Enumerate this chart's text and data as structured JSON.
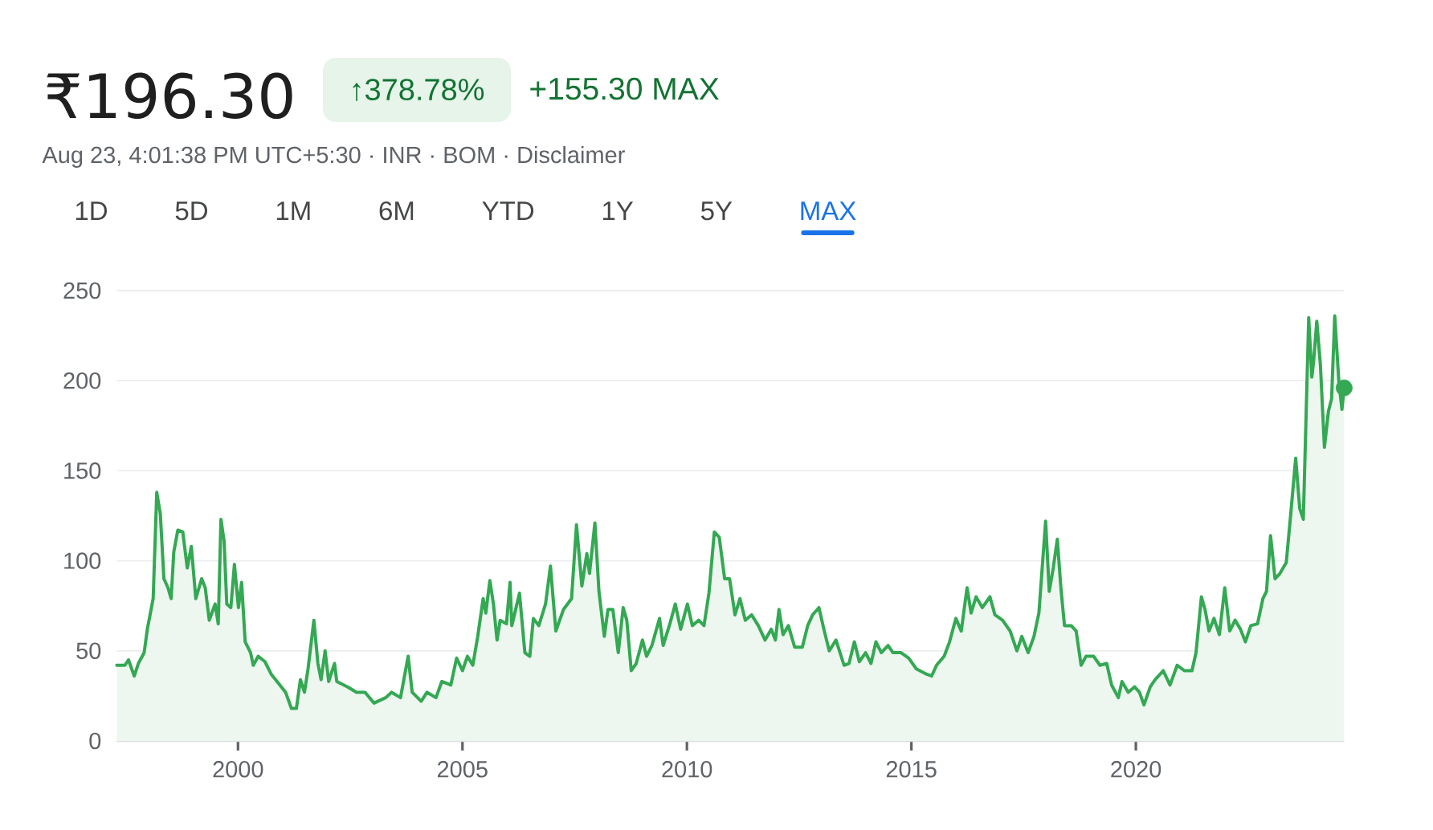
{
  "chart_data": {
    "type": "area",
    "title": "₹196.30",
    "subtitle": "Aug 23, 4:01:38 PM UTC+5:30 · INR · BOM · Disclaimer",
    "annotations": [
      "↑378.78%",
      "+155.30 MAX",
      "1D",
      "5D",
      "1M",
      "6M",
      "YTD",
      "1Y",
      "5Y",
      "MAX"
    ],
    "series": [
      {
        "color": "#34a853",
        "x": [
          1997.3,
          1997.48,
          1997.56,
          1997.69,
          1997.78,
          1997.91,
          1997.98,
          1998.11,
          1998.19,
          1998.27,
          1998.35,
          1998.44,
          1998.51,
          1998.57,
          1998.66,
          1998.77,
          1998.87,
          1998.96,
          1999.06,
          1999.19,
          1999.27,
          1999.36,
          1999.49,
          1999.56,
          1999.62,
          1999.69,
          1999.75,
          1999.84,
          1999.92,
          2000.01,
          2000.08,
          2000.16,
          2000.28,
          2000.34,
          2000.45,
          2000.6,
          2000.74,
          2000.87,
          2001.06,
          2001.19,
          2001.3,
          2001.39,
          2001.48,
          2001.56,
          2001.69,
          2001.78,
          2001.85,
          2001.94,
          2002.02,
          2002.15,
          2002.2,
          2002.44,
          2002.64,
          2002.83,
          2003.03,
          2003.29,
          2003.42,
          2003.62,
          2003.79,
          2003.88,
          2004.08,
          2004.21,
          2004.41,
          2004.54,
          2004.74,
          2004.87,
          2005.0,
          2005.11,
          2005.23,
          2005.34,
          2005.46,
          2005.52,
          2005.61,
          2005.69,
          2005.77,
          2005.84,
          2005.98,
          2006.06,
          2006.1,
          2006.27,
          2006.39,
          2006.5,
          2006.58,
          2006.7,
          2006.85,
          2006.96,
          2007.08,
          2007.25,
          2007.43,
          2007.54,
          2007.66,
          2007.77,
          2007.83,
          2007.95,
          2008.04,
          2008.16,
          2008.24,
          2008.35,
          2008.47,
          2008.58,
          2008.66,
          2008.76,
          2008.87,
          2009.01,
          2009.1,
          2009.22,
          2009.39,
          2009.47,
          2009.62,
          2009.74,
          2009.86,
          2010.01,
          2010.12,
          2010.26,
          2010.38,
          2010.49,
          2010.61,
          2010.72,
          2010.84,
          2010.95,
          2011.07,
          2011.18,
          2011.3,
          2011.44,
          2011.59,
          2011.74,
          2011.88,
          2011.97,
          2012.05,
          2012.14,
          2012.26,
          2012.4,
          2012.57,
          2012.69,
          2012.8,
          2012.94,
          2013.06,
          2013.17,
          2013.32,
          2013.5,
          2013.61,
          2013.73,
          2013.84,
          2013.98,
          2014.1,
          2014.21,
          2014.33,
          2014.48,
          2014.59,
          2014.77,
          2014.94,
          2015.11,
          2015.34,
          2015.45,
          2015.56,
          2015.73,
          2015.85,
          2015.99,
          2016.11,
          2016.24,
          2016.33,
          2016.44,
          2016.58,
          2016.75,
          2016.86,
          2017.03,
          2017.2,
          2017.35,
          2017.46,
          2017.6,
          2017.73,
          2017.84,
          2017.99,
          2018.07,
          2018.16,
          2018.25,
          2018.33,
          2018.41,
          2018.56,
          2018.67,
          2018.78,
          2018.89,
          2019.06,
          2019.2,
          2019.35,
          2019.46,
          2019.61,
          2019.69,
          2019.83,
          2019.97,
          2020.08,
          2020.18,
          2020.32,
          2020.43,
          2020.61,
          2020.76,
          2020.92,
          2021.08,
          2021.25,
          2021.34,
          2021.46,
          2021.54,
          2021.63,
          2021.74,
          2021.86,
          2021.98,
          2022.09,
          2022.21,
          2022.33,
          2022.44,
          2022.56,
          2022.71,
          2022.83,
          2022.91,
          2023.0,
          2023.1,
          2023.21,
          2023.35,
          2023.45,
          2023.56,
          2023.65,
          2023.73,
          2023.85,
          2023.92,
          2023.96,
          2024.03,
          2024.11,
          2024.2,
          2024.29,
          2024.36,
          2024.43,
          2024.52,
          2024.59,
          2024.64
        ],
        "values": [
          42,
          42,
          45,
          36,
          43,
          49,
          62,
          79,
          138,
          126,
          90,
          85,
          79,
          105,
          117,
          116,
          96,
          108,
          79,
          90,
          85,
          67,
          76,
          65,
          123,
          111,
          76,
          74,
          98,
          74,
          88,
          55,
          49,
          42,
          47,
          44,
          37,
          33,
          27,
          18,
          18,
          34,
          27,
          40,
          67,
          43,
          34,
          50,
          33,
          43,
          33,
          30,
          27,
          27,
          21,
          24,
          27,
          24,
          47,
          27,
          22,
          27,
          24,
          33,
          31,
          46,
          39,
          47,
          42,
          58,
          79,
          71,
          89,
          76,
          56,
          67,
          65,
          88,
          64,
          82,
          49,
          47,
          68,
          64,
          76,
          97,
          61,
          73,
          79,
          120,
          86,
          104,
          93,
          121,
          83,
          58,
          73,
          73,
          49,
          74,
          67,
          39,
          43,
          56,
          47,
          53,
          68,
          53,
          65,
          76,
          62,
          76,
          64,
          67,
          64,
          82,
          116,
          113,
          90,
          90,
          70,
          79,
          67,
          70,
          64,
          56,
          62,
          56,
          73,
          59,
          64,
          52,
          52,
          64,
          70,
          74,
          61,
          50,
          56,
          42,
          43,
          55,
          44,
          49,
          43,
          55,
          49,
          53,
          49,
          49,
          46,
          40,
          37,
          36,
          42,
          47,
          55,
          68,
          61,
          85,
          71,
          80,
          74,
          80,
          70,
          67,
          61,
          50,
          58,
          49,
          58,
          71,
          122,
          83,
          96,
          112,
          85,
          64,
          64,
          61,
          42,
          47,
          47,
          42,
          43,
          31,
          24,
          33,
          27,
          30,
          27,
          20,
          30,
          34,
          39,
          31,
          42,
          39,
          39,
          49,
          80,
          73,
          61,
          68,
          59,
          85,
          61,
          67,
          62,
          55,
          64,
          65,
          79,
          83,
          114,
          90,
          93,
          99,
          126,
          157,
          129,
          123,
          235,
          202,
          211,
          233,
          209,
          163,
          183,
          190,
          236,
          200,
          184,
          196
        ]
      },
      {
        "type": "scatter",
        "color": "#34a853",
        "marker": "circle",
        "x": [
          2024.64
        ],
        "values": [
          196
        ]
      }
    ],
    "xlim": [
      1997.3,
      2024.64
    ],
    "ylim": [
      0,
      250
    ],
    "xticks": [
      2000,
      2005,
      2010,
      2015,
      2020
    ],
    "yticks": [
      0,
      50,
      100,
      150,
      200,
      250
    ],
    "grid": "y"
  }
}
